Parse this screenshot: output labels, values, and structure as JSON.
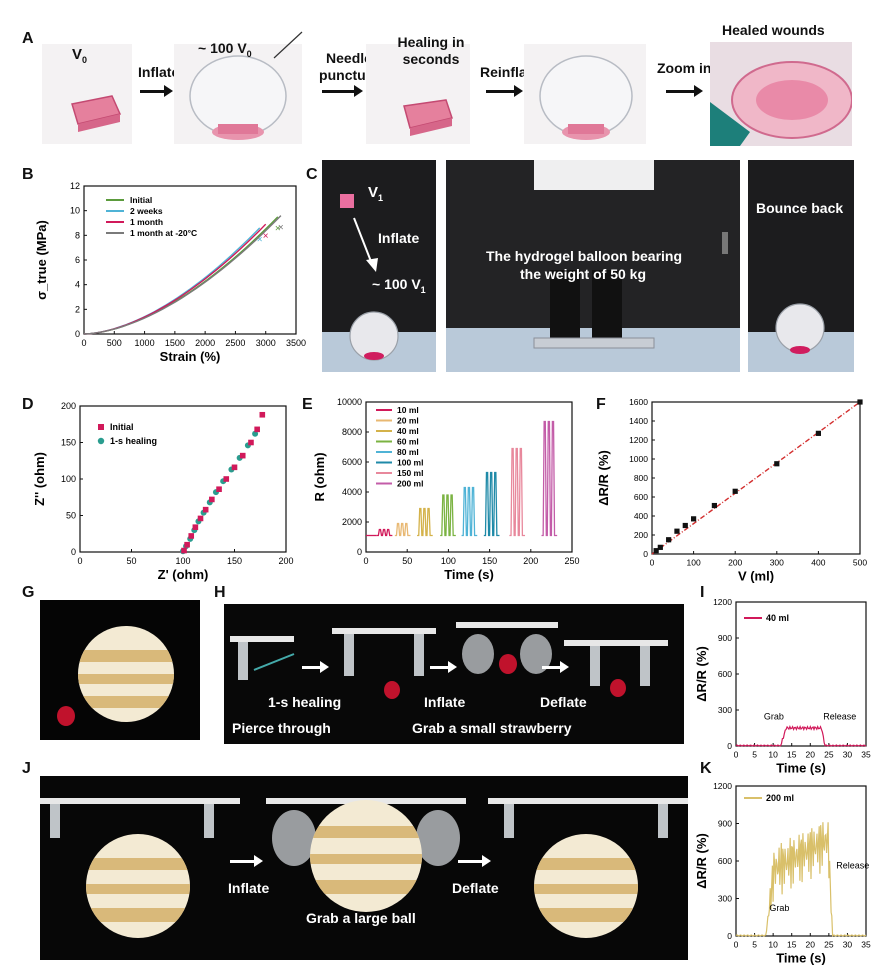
{
  "panels": {
    "A": "A",
    "B": "B",
    "C": "C",
    "D": "D",
    "E": "E",
    "F": "F",
    "G": "G",
    "H": "H",
    "I": "I",
    "J": "J",
    "K": "K"
  },
  "panel_a": {
    "v0": "V",
    "v0_sub": "0",
    "inflate": "Inflate",
    "approx": "~ 100 V",
    "approx_sub": "0",
    "needle_puncture": "Needle puncture",
    "healing": "Healing in seconds",
    "reinflate": "Reinflate",
    "zoom_in": "Zoom in",
    "healed_wounds": "Healed wounds"
  },
  "panel_c": {
    "v1": "V",
    "v1_sub": "1",
    "inflate": "Inflate",
    "approx": "~ 100 V",
    "approx_sub": "1",
    "bearing_line1": "The hydrogel balloon bearing",
    "bearing_line2": "the weight of 50 kg",
    "bounce_back": "Bounce back"
  },
  "panel_h": {
    "healing": "1-s healing",
    "inflate": "Inflate",
    "deflate": "Deflate",
    "pierce": "Pierce through",
    "grab": "Grab a small strawberry"
  },
  "panel_j": {
    "inflate": "Inflate",
    "deflate": "Deflate",
    "grab": "Grab a large ball"
  },
  "colors": {
    "magenta": "#d1195a",
    "teal": "#2a9d8f",
    "green": "#5b9b3c",
    "blue": "#4fb3d6",
    "gray": "#7a7a7a",
    "gold": "#d9c06a"
  },
  "chart_data": [
    {
      "id": "B",
      "type": "line",
      "xlabel": "Strain (%)",
      "ylabel": "σ_true (MPa)",
      "xlim": [
        0,
        3500
      ],
      "ylim": [
        0,
        12
      ],
      "xticks": [
        0,
        500,
        1000,
        1500,
        2000,
        2500,
        3000,
        3500
      ],
      "yticks": [
        0,
        2,
        4,
        6,
        8,
        10,
        12
      ],
      "series": [
        {
          "name": "Initial",
          "x_break": 3200,
          "y_break": 9.5
        },
        {
          "name": "2 weeks",
          "x_break": 2900,
          "y_break": 8.6
        },
        {
          "name": "1 month",
          "x_break": 3000,
          "y_break": 8.9
        },
        {
          "name": "1 month at -20°C",
          "x_break": 3250,
          "y_break": 9.6
        }
      ]
    },
    {
      "id": "D",
      "type": "scatter",
      "xlabel": "Z' (ohm)",
      "ylabel": "Z'' (ohm)",
      "xlim": [
        0,
        200
      ],
      "ylim": [
        0,
        200
      ],
      "xticks": [
        0,
        50,
        100,
        150,
        200
      ],
      "yticks": [
        0,
        50,
        100,
        150,
        200
      ],
      "series": [
        {
          "name": "Initial",
          "x": [
            101,
            104,
            108,
            112,
            117,
            122,
            128,
            135,
            142,
            150,
            158,
            166,
            172,
            177
          ],
          "y": [
            2,
            10,
            22,
            34,
            46,
            58,
            72,
            86,
            100,
            116,
            132,
            150,
            168,
            188
          ]
        },
        {
          "name": "1-s healing",
          "x": [
            100,
            103,
            107,
            111,
            115,
            120,
            126,
            132,
            139,
            147,
            155,
            163,
            170
          ],
          "y": [
            1,
            8,
            18,
            30,
            42,
            54,
            68,
            82,
            97,
            113,
            129,
            146,
            162
          ]
        }
      ]
    },
    {
      "id": "E",
      "type": "line",
      "xlabel": "Time (s)",
      "ylabel": "R (ohm)",
      "xlim": [
        0,
        250
      ],
      "ylim": [
        0,
        10000
      ],
      "xticks": [
        0,
        50,
        100,
        150,
        200,
        250
      ],
      "yticks": [
        0,
        2000,
        4000,
        6000,
        8000,
        10000
      ],
      "baseline": 1100,
      "series": [
        {
          "name": "10 ml",
          "t_start": 15,
          "peak": 1500
        },
        {
          "name": "20 ml",
          "t_start": 37,
          "peak": 1900
        },
        {
          "name": "40 ml",
          "t_start": 64,
          "peak": 2900
        },
        {
          "name": "60 ml",
          "t_start": 92,
          "peak": 3800
        },
        {
          "name": "80 ml",
          "t_start": 118,
          "peak": 4300
        },
        {
          "name": "100 ml",
          "t_start": 145,
          "peak": 5300
        },
        {
          "name": "150 ml",
          "t_start": 176,
          "peak": 6900
        },
        {
          "name": "200 ml",
          "t_start": 215,
          "peak": 8700
        }
      ]
    },
    {
      "id": "F",
      "type": "scatter",
      "xlabel": "V (ml)",
      "ylabel": "ΔR/R (%)",
      "xlim": [
        0,
        500
      ],
      "ylim": [
        0,
        1600
      ],
      "xticks": [
        0,
        100,
        200,
        300,
        400,
        500
      ],
      "yticks": [
        0,
        200,
        400,
        600,
        800,
        1000,
        1200,
        1400,
        1600
      ],
      "x": [
        10,
        20,
        40,
        60,
        80,
        100,
        150,
        200,
        300,
        400,
        500
      ],
      "y": [
        35,
        70,
        150,
        240,
        300,
        370,
        510,
        660,
        950,
        1270,
        1600
      ]
    },
    {
      "id": "I",
      "type": "line",
      "xlabel": "Time (s)",
      "ylabel": "ΔR/R (%)",
      "legend": "40 ml",
      "xlim": [
        0,
        35
      ],
      "ylim": [
        0,
        1200
      ],
      "xticks": [
        0,
        5,
        10,
        15,
        20,
        25,
        30,
        35
      ],
      "yticks": [
        0,
        300,
        600,
        900,
        1200
      ],
      "annotations": [
        "Grab",
        "Release"
      ],
      "plateau": 150,
      "t_grab": 12,
      "t_release": 24
    },
    {
      "id": "K",
      "type": "line",
      "xlabel": "Time (s)",
      "ylabel": "ΔR/R (%)",
      "legend": "200 ml",
      "xlim": [
        0,
        35
      ],
      "ylim": [
        0,
        1200
      ],
      "xticks": [
        0,
        5,
        10,
        15,
        20,
        25,
        30,
        35
      ],
      "yticks": [
        0,
        300,
        600,
        900,
        1200
      ],
      "annotations": [
        "Grab",
        "Release"
      ],
      "t_grab": 8,
      "t_release": 26,
      "peak": 1100
    }
  ]
}
